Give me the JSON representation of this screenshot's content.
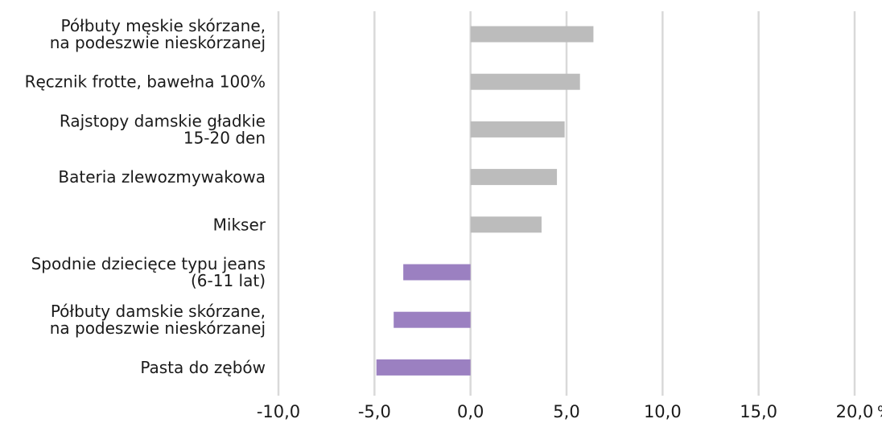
{
  "chart_data": {
    "type": "bar",
    "orientation": "horizontal",
    "categories": [
      [
        "Półbuty męskie skórzane,",
        "na podeszwie nieskórzanej"
      ],
      [
        "Ręcznik frotte, bawełna 100%"
      ],
      [
        "Rajstopy damskie gładkie",
        "15-20 den"
      ],
      [
        "Bateria zlewozmywakowa"
      ],
      [
        "Mikser"
      ],
      [
        "Spodnie dziecięce typu jeans",
        "(6-11 lat)"
      ],
      [
        "Półbuty damskie skórzane,",
        "na podeszwie nieskórzanej"
      ],
      [
        "Pasta do zębów"
      ]
    ],
    "values": [
      6.4,
      5.7,
      4.9,
      4.5,
      3.7,
      -3.5,
      -4.0,
      -4.9
    ],
    "xlim": [
      -10,
      20
    ],
    "xticks": [
      -10,
      -5,
      0,
      5,
      10,
      15,
      20
    ],
    "xtick_labels": [
      "-10,0",
      "-5,0",
      "0,0",
      "5,0",
      "10,0",
      "15,0",
      "20,0"
    ],
    "x_unit": "%",
    "grid": "vertical",
    "legend": "none",
    "title": "",
    "xlabel": "",
    "ylabel": "",
    "colors": {
      "positive": "#bcbcbc",
      "negative": "#9b80c1",
      "grid": "#d9d9d9",
      "text": "#1a1a1a"
    }
  }
}
